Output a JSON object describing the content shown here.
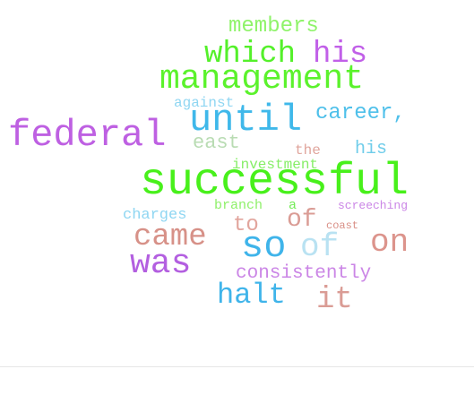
{
  "word_cloud": {
    "words": [
      {
        "text": "members",
        "color": "#8ff36a"
      },
      {
        "text": "which",
        "color": "#54f02a"
      },
      {
        "text": "his",
        "color": "#c160e8"
      },
      {
        "text": "management",
        "color": "#5bf22c"
      },
      {
        "text": "against",
        "color": "#8fd6f2"
      },
      {
        "text": "until",
        "color": "#3fb8ea"
      },
      {
        "text": "career,",
        "color": "#4fc0ea"
      },
      {
        "text": "federal",
        "color": "#be60e2"
      },
      {
        "text": "east",
        "color": "#b9dcb3"
      },
      {
        "text": "the",
        "color": "#e0a59c"
      },
      {
        "text": "his",
        "color": "#70cdea"
      },
      {
        "text": "investment",
        "color": "#86ee67"
      },
      {
        "text": "successful",
        "color": "#48f01b"
      },
      {
        "text": "branch",
        "color": "#8ff06a"
      },
      {
        "text": "a",
        "color": "#74ec58"
      },
      {
        "text": "screeching",
        "color": "#cb86e6"
      },
      {
        "text": "charges",
        "color": "#8fd6f2"
      },
      {
        "text": "of",
        "color": "#da9c95"
      },
      {
        "text": "to",
        "color": "#e2a59d"
      },
      {
        "text": "coast",
        "color": "#d98f86"
      },
      {
        "text": "came",
        "color": "#d79188"
      },
      {
        "text": "so",
        "color": "#3fb4ea"
      },
      {
        "text": "of",
        "color": "#b9e2f2"
      },
      {
        "text": "on",
        "color": "#dc948c"
      },
      {
        "text": "was",
        "color": "#b35fe0"
      },
      {
        "text": "consistently",
        "color": "#cb86e6"
      },
      {
        "text": "halt",
        "color": "#3fb4ea"
      },
      {
        "text": "it",
        "color": "#da9c95"
      }
    ]
  }
}
